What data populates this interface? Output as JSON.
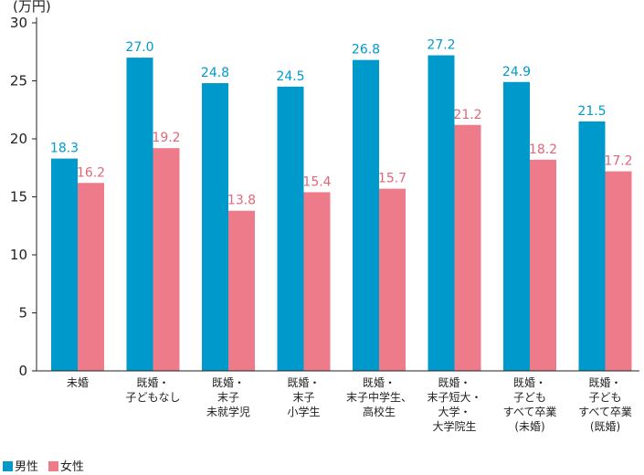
{
  "chart_data": {
    "type": "bar",
    "unit_label": "(万円)",
    "ylim": [
      0,
      30
    ],
    "yticks": [
      0,
      5,
      10,
      15,
      20,
      25,
      30
    ],
    "categories": [
      [
        "未婚"
      ],
      [
        "既婚・",
        "子どもなし"
      ],
      [
        "既婚・",
        "末子",
        "未就学児"
      ],
      [
        "既婚・",
        "末子",
        "小学生"
      ],
      [
        "既婚・",
        "末子中学生、",
        "高校生"
      ],
      [
        "既婚・",
        "末子短大・",
        "大学・",
        "大学院生"
      ],
      [
        "既婚・",
        "子ども",
        "すべて卒業",
        "(未婚)"
      ],
      [
        "既婚・",
        "子ども",
        "すべて卒業",
        "(既婚)"
      ]
    ],
    "series": [
      {
        "name": "男性",
        "color": "#0099cc",
        "label_color": "#0099cc",
        "values": [
          18.3,
          27.0,
          24.8,
          24.5,
          26.8,
          27.2,
          24.9,
          21.5
        ]
      },
      {
        "name": "女性",
        "color": "#ee7b89",
        "label_color": "#e2667a",
        "values": [
          16.2,
          19.2,
          13.8,
          15.4,
          15.7,
          21.2,
          18.2,
          17.2
        ]
      }
    ],
    "legend_position": "bottom-left",
    "grid": false
  }
}
